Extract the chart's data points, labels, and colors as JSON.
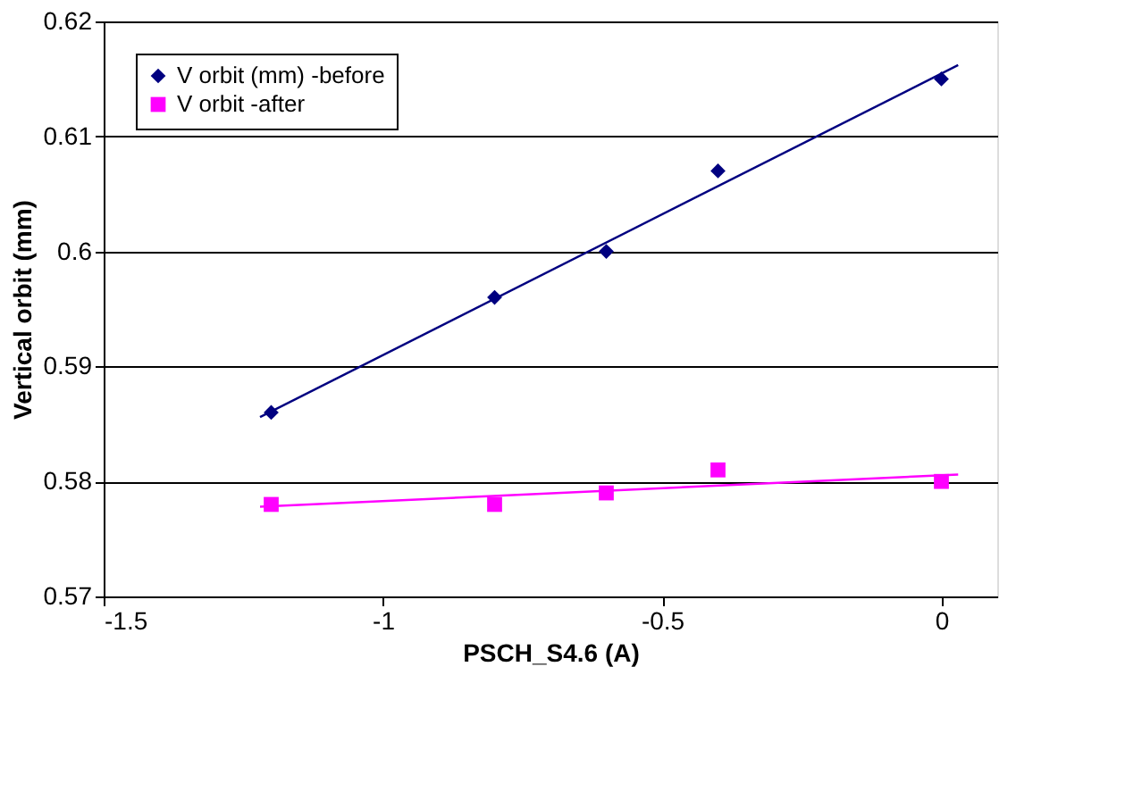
{
  "chart_data": {
    "type": "scatter",
    "xlabel": "PSCH_S4.6 (A)",
    "ylabel": "Vertical  orbit (mm)",
    "xlim": [
      -1.5,
      0.1
    ],
    "xticks": [
      -1.5,
      -1,
      -0.5,
      0
    ],
    "ylim": [
      0.57,
      0.62
    ],
    "yticks": [
      0.57,
      0.58,
      0.59,
      0.6,
      0.61,
      0.62
    ],
    "grid": "y",
    "legend": "top left",
    "series": [
      {
        "name": "V orbit (mm) -before",
        "marker": "diamond",
        "color": "#000080",
        "x": [
          -1.2,
          -0.8,
          -0.6,
          -0.4,
          0
        ],
        "values": [
          0.586,
          0.596,
          0.6,
          0.607,
          0.615
        ]
      },
      {
        "name": "V orbit -after",
        "marker": "square",
        "color": "#ff00ff",
        "x": [
          -1.2,
          -0.8,
          -0.6,
          -0.4,
          0
        ],
        "values": [
          0.578,
          0.578,
          0.579,
          0.581,
          0.58
        ]
      },
      {
        "type": "line",
        "color": "#000080",
        "x": [
          -1.22,
          0.03
        ],
        "values": [
          0.5856,
          0.6162
        ]
      },
      {
        "type": "line",
        "color": "#ff00ff",
        "x": [
          -1.22,
          0.03
        ],
        "values": [
          0.5778,
          0.5806
        ]
      }
    ]
  }
}
